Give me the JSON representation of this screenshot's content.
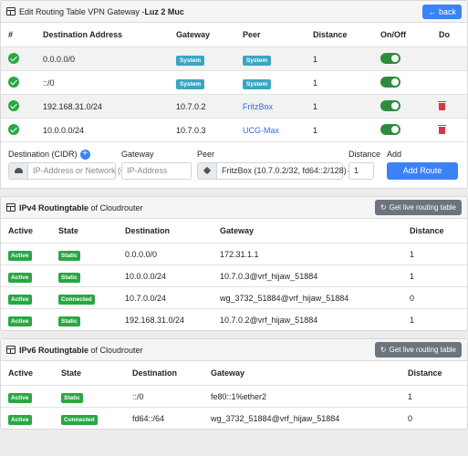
{
  "edit": {
    "title_prefix": "Edit Routing Table VPN Gateway - ",
    "title_bold": "Luz 2 Muc",
    "back_label": "← back",
    "columns": [
      "#",
      "Destination Address",
      "Gateway",
      "Peer",
      "Distance",
      "On/Off",
      "Do"
    ],
    "rows": [
      {
        "dest": "0.0.0.0/0",
        "gateway": "System",
        "peer": "System",
        "distance": "1"
      },
      {
        "dest": "::/0",
        "gateway": "System",
        "peer": "System",
        "distance": "1"
      },
      {
        "dest": "192.168.31.0/24",
        "gateway": "10.7.0.2",
        "peer": "FritzBox",
        "distance": "1"
      },
      {
        "dest": "10.0.0.0/24",
        "gateway": "10.7.0.3",
        "peer": "UCG-Max",
        "distance": "1"
      }
    ],
    "form": {
      "dest_label": "Destination (CIDR)",
      "gateway_label": "Gateway",
      "peer_label": "Peer",
      "distance_label": "Distance",
      "add_label": "Add",
      "dest_placeholder": "IP-Address or Network (C",
      "gateway_placeholder": "IP-Address",
      "peer_value": "FritzBox (10.7.0.2/32, fd64::2/128)",
      "distance_value": "1",
      "add_button": "Add Route"
    }
  },
  "ipv4": {
    "title_bold": "IPv4 Routingtable",
    "title_suffix": " of Cloudrouter",
    "live_button": "Get live routing table",
    "columns": [
      "Active",
      "State",
      "Destination",
      "Gateway",
      "Distance"
    ],
    "rows": [
      {
        "active": "Active",
        "state": "Static",
        "dest": "0.0.0.0/0",
        "gateway": "172.31.1.1",
        "distance": "1"
      },
      {
        "active": "Active",
        "state": "Static",
        "dest": "10.0.0.0/24",
        "gateway": "10.7.0.3@vrf_hijaw_51884",
        "distance": "1"
      },
      {
        "active": "Active",
        "state": "Connected",
        "dest": "10.7.0.0/24",
        "gateway": "wg_3732_51884@vrf_hijaw_51884",
        "distance": "0"
      },
      {
        "active": "Active",
        "state": "Static",
        "dest": "192.168.31.0/24",
        "gateway": "10.7.0.2@vrf_hijaw_51884",
        "distance": "1"
      }
    ]
  },
  "ipv6": {
    "title_bold": "IPv6 Routingtable",
    "title_suffix": " of Cloudrouter",
    "live_button": "Get live routing table",
    "columns": [
      "Active",
      "State",
      "Destination",
      "Gateway",
      "Distance"
    ],
    "rows": [
      {
        "active": "Active",
        "state": "Static",
        "dest": "::/0",
        "gateway": "fe80::1%ether2",
        "distance": "1"
      },
      {
        "active": "Active",
        "state": "Connected",
        "dest": "fd64::/64",
        "gateway": "wg_3732_51884@vrf_hijaw_51884",
        "distance": "0"
      }
    ]
  },
  "colors": {
    "primary": "#3b82f6",
    "success": "#28a745",
    "info": "#3aa6c2",
    "danger": "#dc3545",
    "secondary": "#6c757d"
  }
}
